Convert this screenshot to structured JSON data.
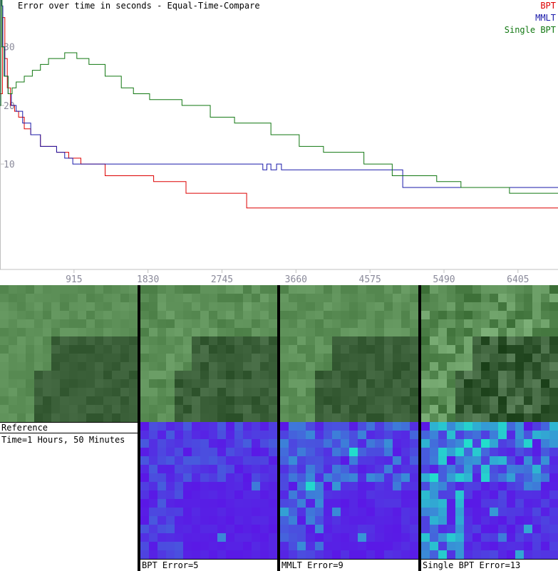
{
  "chart_data": {
    "type": "line",
    "title": "Error over time in seconds - Equal-Time-Compare",
    "xlabel": "",
    "ylabel": "",
    "xlim": [
      0,
      6900
    ],
    "ylim": [
      -8,
      38
    ],
    "x_ticks": [
      915,
      1830,
      2745,
      3660,
      4575,
      5490,
      6405
    ],
    "x_tick_labels": [
      "915",
      "1830",
      "2745",
      "3660",
      "4575",
      "5490",
      "6405"
    ],
    "y_ticks": [
      10,
      20,
      30
    ],
    "y_tick_labels": [
      "10",
      "20",
      "30"
    ],
    "legend_position": "top-right",
    "series": [
      {
        "name": "BPT",
        "color": "#dd0000",
        "x": [
          0,
          30,
          60,
          90,
          130,
          180,
          230,
          300,
          380,
          500,
          700,
          850,
          1000,
          1300,
          1900,
          2300,
          3050,
          6900
        ],
        "y": [
          22,
          35,
          28,
          23,
          20,
          19,
          18,
          16,
          15,
          13,
          12,
          11,
          10,
          8,
          7,
          5,
          2.5,
          2.5
        ]
      },
      {
        "name": "MMLT",
        "color": "#1a1aaa",
        "x": [
          0,
          8,
          20,
          35,
          60,
          100,
          140,
          200,
          280,
          380,
          500,
          700,
          800,
          900,
          1100,
          1380,
          3230,
          3250,
          3300,
          3350,
          3420,
          3480,
          3650,
          4970,
          4980,
          6900
        ],
        "y": [
          20,
          45,
          37,
          30,
          25,
          22,
          20,
          19,
          17,
          15,
          13,
          12,
          11,
          10,
          10,
          10,
          10,
          9,
          10,
          9,
          10,
          9,
          9,
          9,
          6,
          6
        ]
      },
      {
        "name": "Single BPT",
        "color": "#117711",
        "x": [
          0,
          10,
          25,
          50,
          100,
          150,
          200,
          300,
          400,
          500,
          600,
          800,
          950,
          1100,
          1300,
          1500,
          1650,
          1850,
          2250,
          2600,
          2900,
          3350,
          3700,
          4000,
          4500,
          4850,
          5400,
          5700,
          6100,
          6300,
          6900
        ],
        "y": [
          20,
          70,
          30,
          25,
          22,
          23,
          24,
          25,
          26,
          27,
          28,
          29,
          28,
          27,
          25,
          23,
          22,
          21,
          20,
          18,
          17,
          15,
          13,
          12,
          10,
          8,
          7,
          6,
          6,
          5,
          5
        ]
      }
    ]
  },
  "panels": [
    {
      "label": "Reference",
      "sublabel": "Time=1 Hours, 50 Minutes"
    },
    {
      "label": "BPT Error=5"
    },
    {
      "label": "MMLT Error=9"
    },
    {
      "label": "Single BPT Error=13"
    }
  ],
  "colors": {
    "render_light": "#5c8f57",
    "render_dark": "#3a5f38",
    "error_low": "#5a18e6",
    "error_high": "#22ddcc",
    "separator": "#000000"
  }
}
